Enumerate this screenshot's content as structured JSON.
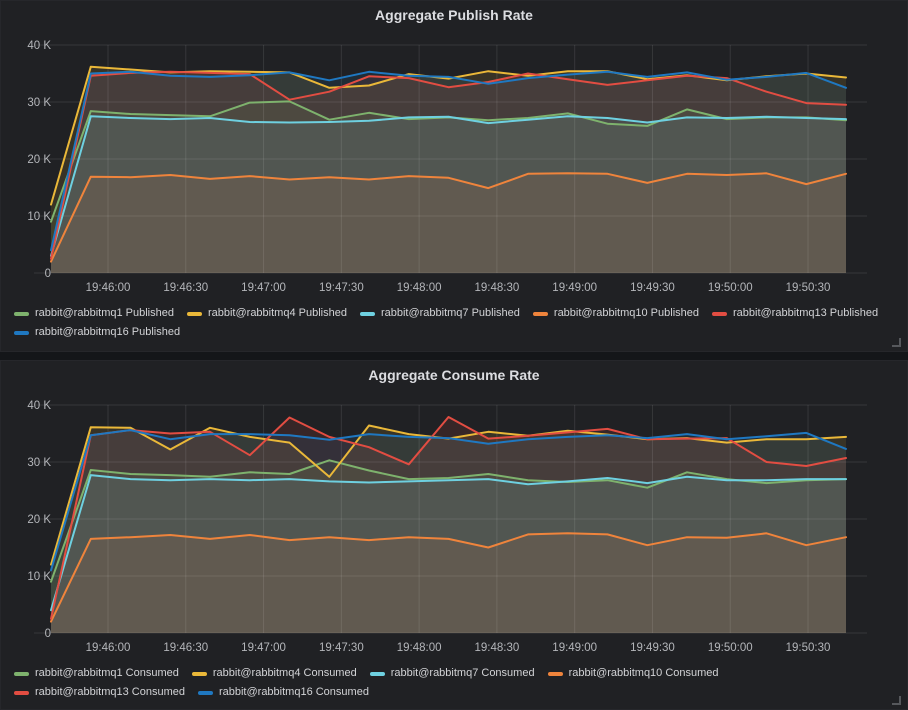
{
  "chart_data": [
    {
      "type": "area",
      "title": "Aggregate Publish Rate",
      "grid": true,
      "legend_position": "bottom",
      "ylim_k": [
        0,
        40
      ],
      "y_tick_labels": [
        "0",
        "10 K",
        "20 K",
        "30 K",
        "40 K"
      ],
      "x_tick_labels": [
        "19:46:00",
        "19:46:30",
        "19:47:00",
        "19:47:30",
        "19:48:00",
        "19:48:30",
        "19:49:00",
        "19:49:30",
        "19:50:00",
        "19:50:30"
      ],
      "x": [
        "19:45:38",
        "19:45:53",
        "19:46:09",
        "19:46:24",
        "19:46:39",
        "19:46:55",
        "19:47:10",
        "19:47:25",
        "19:47:41",
        "19:47:56",
        "19:48:11",
        "19:48:27",
        "19:48:42",
        "19:48:57",
        "19:49:12",
        "19:49:28",
        "19:49:43",
        "19:49:58",
        "19:50:14",
        "19:50:29",
        "19:50:44"
      ],
      "series": [
        {
          "name": "rabbit@rabbitmq1 Published",
          "color": "#7EB26D",
          "values_k": [
            9.0,
            28.4,
            27.9,
            27.7,
            27.5,
            29.9,
            30.1,
            26.9,
            28.1,
            27.0,
            27.3,
            26.8,
            27.2,
            28.0,
            26.2,
            25.8,
            28.7,
            27.0,
            27.3,
            27.3,
            26.8
          ]
        },
        {
          "name": "rabbit@rabbitmq4 Published",
          "color": "#EAB839",
          "values_k": [
            12.0,
            36.2,
            35.7,
            35.2,
            35.4,
            35.3,
            35.2,
            32.5,
            32.9,
            34.9,
            34.1,
            35.4,
            34.6,
            35.4,
            35.4,
            34.0,
            34.7,
            33.8,
            34.5,
            35.0,
            34.3
          ]
        },
        {
          "name": "rabbit@rabbitmq7 Published",
          "color": "#6ED0E0",
          "values_k": [
            3.0,
            27.5,
            27.2,
            27.0,
            27.2,
            26.5,
            26.4,
            26.5,
            26.7,
            27.3,
            27.4,
            26.3,
            26.9,
            27.5,
            27.2,
            26.4,
            27.3,
            27.2,
            27.4,
            27.2,
            27.0
          ]
        },
        {
          "name": "rabbit@rabbitmq10 Published",
          "color": "#EF843C",
          "values_k": [
            2.0,
            16.9,
            16.8,
            17.2,
            16.5,
            17.0,
            16.4,
            16.8,
            16.4,
            17.0,
            16.7,
            14.9,
            17.4,
            17.5,
            17.4,
            15.8,
            17.4,
            17.2,
            17.5,
            15.6,
            17.4
          ]
        },
        {
          "name": "rabbit@rabbitmq13 Published",
          "color": "#E24D42",
          "values_k": [
            2.5,
            34.6,
            35.1,
            35.3,
            35.1,
            34.9,
            30.4,
            31.8,
            34.5,
            34.2,
            32.6,
            33.5,
            35.0,
            34.0,
            33.0,
            33.8,
            34.6,
            34.2,
            31.8,
            29.8,
            29.5
          ]
        },
        {
          "name": "rabbit@rabbitmq16 Published",
          "color": "#1F78C1",
          "values_k": [
            4.0,
            35.0,
            35.3,
            34.6,
            34.4,
            34.7,
            35.2,
            33.8,
            35.3,
            34.6,
            34.4,
            33.2,
            34.2,
            34.8,
            35.3,
            34.4,
            35.2,
            33.9,
            34.4,
            35.1,
            32.5
          ]
        }
      ]
    },
    {
      "type": "area",
      "title": "Aggregate Consume Rate",
      "grid": true,
      "legend_position": "bottom",
      "ylim_k": [
        0,
        40
      ],
      "y_tick_labels": [
        "0",
        "10 K",
        "20 K",
        "30 K",
        "40 K"
      ],
      "x_tick_labels": [
        "19:46:00",
        "19:46:30",
        "19:47:00",
        "19:47:30",
        "19:48:00",
        "19:48:30",
        "19:49:00",
        "19:49:30",
        "19:50:00",
        "19:50:30"
      ],
      "x": [
        "19:45:38",
        "19:45:53",
        "19:46:09",
        "19:46:24",
        "19:46:39",
        "19:46:55",
        "19:47:10",
        "19:47:25",
        "19:47:41",
        "19:47:56",
        "19:48:11",
        "19:48:27",
        "19:48:42",
        "19:48:57",
        "19:49:12",
        "19:49:28",
        "19:49:43",
        "19:49:58",
        "19:50:14",
        "19:50:29",
        "19:50:44"
      ],
      "series": [
        {
          "name": "rabbit@rabbitmq1 Consumed",
          "color": "#7EB26D",
          "values_k": [
            9.0,
            28.6,
            27.9,
            27.7,
            27.4,
            28.2,
            27.9,
            30.3,
            28.5,
            27.0,
            27.2,
            27.9,
            26.8,
            26.5,
            26.8,
            25.5,
            28.2,
            27.0,
            26.3,
            26.8,
            27.0
          ]
        },
        {
          "name": "rabbit@rabbitmq4 Consumed",
          "color": "#EAB839",
          "values_k": [
            12.0,
            36.1,
            36.0,
            32.2,
            36.0,
            34.4,
            33.4,
            27.4,
            36.4,
            34.9,
            34.1,
            35.3,
            34.6,
            35.5,
            34.8,
            34.0,
            34.2,
            33.4,
            34.0,
            34.0,
            34.4
          ]
        },
        {
          "name": "rabbit@rabbitmq7 Consumed",
          "color": "#6ED0E0",
          "values_k": [
            4.0,
            27.7,
            27.0,
            26.8,
            27.0,
            26.8,
            27.0,
            26.6,
            26.4,
            26.6,
            26.8,
            27.0,
            26.1,
            26.6,
            27.2,
            26.3,
            27.4,
            26.8,
            26.8,
            27.0,
            27.0
          ]
        },
        {
          "name": "rabbit@rabbitmq10 Consumed",
          "color": "#EF843C",
          "values_k": [
            2.0,
            16.5,
            16.8,
            17.2,
            16.5,
            17.2,
            16.3,
            16.8,
            16.3,
            16.8,
            16.5,
            15.0,
            17.3,
            17.5,
            17.3,
            15.4,
            16.8,
            16.7,
            17.5,
            15.4,
            16.8
          ]
        },
        {
          "name": "rabbit@rabbitmq13 Consumed",
          "color": "#E24D42",
          "values_k": [
            2.5,
            34.7,
            35.6,
            35.0,
            35.3,
            31.2,
            37.8,
            34.4,
            32.6,
            29.6,
            37.9,
            34.1,
            34.6,
            35.2,
            35.8,
            34.0,
            34.1,
            34.2,
            30.0,
            29.3,
            30.7
          ]
        },
        {
          "name": "rabbit@rabbitmq16 Consumed",
          "color": "#1F78C1",
          "values_k": [
            11.0,
            34.7,
            35.6,
            34.0,
            34.9,
            34.9,
            34.7,
            33.9,
            34.9,
            34.4,
            34.2,
            33.2,
            34.0,
            34.4,
            34.7,
            34.2,
            34.9,
            34.0,
            34.5,
            35.1,
            32.3
          ]
        }
      ]
    }
  ],
  "colors": {
    "page_bg": "#141619",
    "panel_bg": "#202124",
    "title_text": "#dcdde1",
    "axis_text": "#b4b6ba",
    "legend_text": "#d2d3d6"
  }
}
